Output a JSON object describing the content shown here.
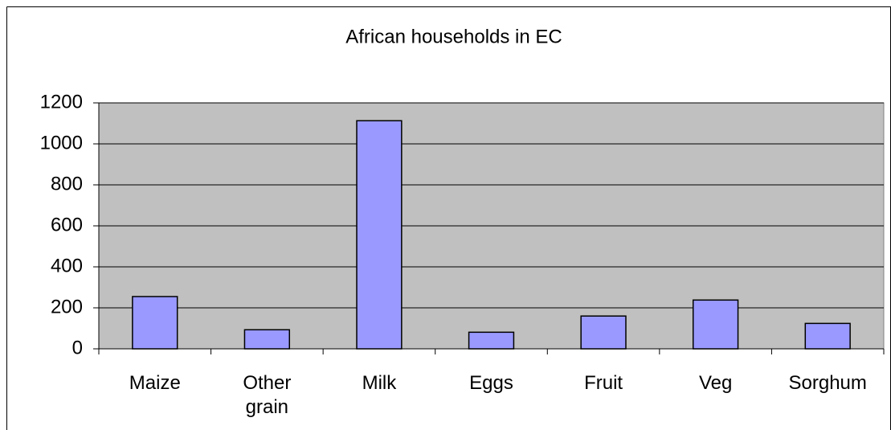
{
  "chart_data": {
    "type": "bar",
    "title": "African households in EC",
    "categories": [
      "Maize",
      "Other grain",
      "Milk",
      "Eggs",
      "Fruit",
      "Veg",
      "Sorghum"
    ],
    "values": [
      255,
      93,
      1113,
      81,
      160,
      238,
      124
    ],
    "color": "#9999ff",
    "plot_background": "#c0c0c0",
    "ylim": [
      0,
      1200
    ],
    "yticks": [
      0,
      200,
      400,
      600,
      800,
      1000,
      1200
    ],
    "grid": true
  }
}
